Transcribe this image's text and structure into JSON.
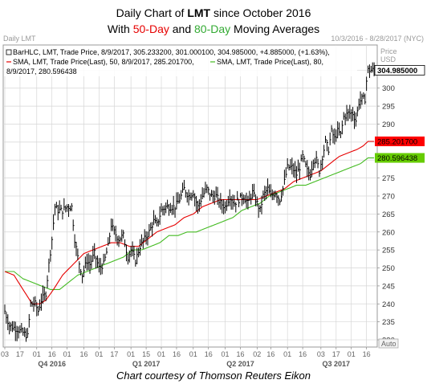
{
  "title": {
    "line1_prefix": "Daily Chart of ",
    "line1_symbol": "LMT",
    "line1_suffix": " since October 2016",
    "line2_prefix": "With ",
    "line2_50": "50-Day",
    "line2_mid": " and ",
    "line2_80": "80-Day",
    "line2_suffix": " Moving Averages"
  },
  "header": {
    "left": "Daily LMT",
    "right": "10/3/2016 - 8/28/2017 (NYC)"
  },
  "legend": {
    "line1": "BarHLC, LMT, Trade Price, 8/9/2017, 305.233200, 301.000100, 304.985000, +4.885000, (+1.63%),",
    "line2_sma50": "SMA, LMT, Trade Price(Last), 50, 8/9/2017, 285.201700,",
    "line2_sma80": "SMA, LMT, Trade Price(Last), 80,",
    "line3": "8/9/2017, 280.596438"
  },
  "axis": {
    "price_label": "Price",
    "usd_label": "USD",
    "auto_label": "Auto"
  },
  "tags": {
    "last": "304.985000",
    "sma50": "285.201700",
    "sma80": "280.596438"
  },
  "credit": "Chart courtesy of Thomson Reuters Eikon",
  "colors": {
    "price": "#000000",
    "sma50": "#e60000",
    "sma80": "#44bb22",
    "grid": "#d6d6d6",
    "plot_border": "#888888",
    "tag_last_bg": "#ffffff",
    "tag_sma50_bg": "#ff0000",
    "tag_sma80_bg": "#66cc00"
  },
  "chart_data": {
    "type": "line",
    "title": "Daily Chart of LMT since October 2016",
    "subtitle": "With 50-Day and 80-Day Moving Averages",
    "ylabel": "Price USD",
    "ylim": [
      228,
      312
    ],
    "y_ticks": [
      230,
      235,
      240,
      245,
      250,
      255,
      260,
      265,
      270,
      275,
      280,
      285,
      290,
      295,
      300,
      305
    ],
    "grid": true,
    "x_ticks": [
      {
        "label": "03",
        "i": 0
      },
      {
        "label": "17",
        "i": 10
      },
      {
        "label": "01",
        "i": 21
      },
      {
        "label": "16",
        "i": 31
      },
      {
        "label": "01",
        "i": 41
      },
      {
        "label": "16",
        "i": 52
      },
      {
        "label": "01",
        "i": 62
      },
      {
        "label": "17",
        "i": 72
      },
      {
        "label": "01",
        "i": 83
      },
      {
        "label": "15",
        "i": 93
      },
      {
        "label": "01",
        "i": 103
      },
      {
        "label": "16",
        "i": 113
      },
      {
        "label": "01",
        "i": 124
      },
      {
        "label": "16",
        "i": 134
      },
      {
        "label": "01",
        "i": 145
      },
      {
        "label": "16",
        "i": 155
      },
      {
        "label": "02",
        "i": 166
      },
      {
        "label": "16",
        "i": 175
      },
      {
        "label": "01",
        "i": 186
      },
      {
        "label": "16",
        "i": 196
      },
      {
        "label": "03",
        "i": 208
      },
      {
        "label": "17",
        "i": 218
      },
      {
        "label": "01",
        "i": 228
      },
      {
        "label": "16",
        "i": 238
      }
    ],
    "quarter_labels": [
      {
        "label": "Q4 2016",
        "i": 31
      },
      {
        "label": "Q1 2017",
        "i": 93
      },
      {
        "label": "Q2 2017",
        "i": 155
      },
      {
        "label": "Q3 2017",
        "i": 218
      }
    ],
    "n_days": 244,
    "price_anchors": [
      [
        0,
        238
      ],
      [
        3,
        234
      ],
      [
        8,
        233
      ],
      [
        12,
        232
      ],
      [
        15,
        231
      ],
      [
        17,
        240
      ],
      [
        20,
        240
      ],
      [
        22,
        238
      ],
      [
        24,
        241
      ],
      [
        27,
        243
      ],
      [
        29,
        251
      ],
      [
        31,
        258
      ],
      [
        33,
        267
      ],
      [
        35,
        266
      ],
      [
        38,
        266
      ],
      [
        41,
        267
      ],
      [
        44,
        267
      ],
      [
        46,
        258
      ],
      [
        48,
        253
      ],
      [
        51,
        248
      ],
      [
        54,
        252
      ],
      [
        56,
        251
      ],
      [
        59,
        254
      ],
      [
        62,
        250
      ],
      [
        65,
        251
      ],
      [
        68,
        256
      ],
      [
        70,
        262
      ],
      [
        72,
        260
      ],
      [
        75,
        258
      ],
      [
        78,
        259
      ],
      [
        81,
        253
      ],
      [
        83,
        255
      ],
      [
        86,
        252
      ],
      [
        89,
        256
      ],
      [
        92,
        258
      ],
      [
        95,
        260
      ],
      [
        98,
        263
      ],
      [
        100,
        262
      ],
      [
        103,
        266
      ],
      [
        106,
        267
      ],
      [
        109,
        267
      ],
      [
        112,
        267
      ],
      [
        115,
        269
      ],
      [
        118,
        272
      ],
      [
        121,
        270
      ],
      [
        124,
        271
      ],
      [
        127,
        267
      ],
      [
        130,
        270
      ],
      [
        133,
        272
      ],
      [
        136,
        270
      ],
      [
        139,
        270
      ],
      [
        142,
        268
      ],
      [
        145,
        267
      ],
      [
        148,
        270
      ],
      [
        151,
        268
      ],
      [
        154,
        269
      ],
      [
        157,
        270
      ],
      [
        160,
        268
      ],
      [
        163,
        271
      ],
      [
        166,
        268
      ],
      [
        168,
        266
      ],
      [
        170,
        270
      ],
      [
        173,
        272
      ],
      [
        175,
        270
      ],
      [
        178,
        271
      ],
      [
        181,
        269
      ],
      [
        183,
        272
      ],
      [
        186,
        278
      ],
      [
        189,
        278
      ],
      [
        192,
        276
      ],
      [
        194,
        278
      ],
      [
        196,
        281
      ],
      [
        199,
        277
      ],
      [
        201,
        276
      ],
      [
        203,
        280
      ],
      [
        205,
        280
      ],
      [
        207,
        277
      ],
      [
        209,
        281
      ],
      [
        211,
        285
      ],
      [
        213,
        283
      ],
      [
        215,
        288
      ],
      [
        217,
        286
      ],
      [
        219,
        288
      ],
      [
        221,
        287
      ],
      [
        223,
        292
      ],
      [
        226,
        293
      ],
      [
        229,
        293
      ],
      [
        231,
        291
      ],
      [
        233,
        296
      ],
      [
        235,
        297
      ],
      [
        237,
        297
      ],
      [
        238,
        302
      ],
      [
        239,
        305
      ]
    ],
    "sma50_anchors": [
      [
        0,
        249
      ],
      [
        6,
        248
      ],
      [
        12,
        244
      ],
      [
        18,
        240
      ],
      [
        20,
        240
      ],
      [
        23,
        240
      ],
      [
        27,
        241
      ],
      [
        32,
        244
      ],
      [
        38,
        248
      ],
      [
        45,
        251
      ],
      [
        52,
        254
      ],
      [
        58,
        255
      ],
      [
        64,
        256
      ],
      [
        70,
        257
      ],
      [
        76,
        257
      ],
      [
        82,
        256
      ],
      [
        88,
        256
      ],
      [
        94,
        258
      ],
      [
        100,
        260
      ],
      [
        106,
        261
      ],
      [
        112,
        262
      ],
      [
        118,
        264
      ],
      [
        124,
        265
      ],
      [
        130,
        267
      ],
      [
        136,
        268
      ],
      [
        142,
        269
      ],
      [
        148,
        269
      ],
      [
        154,
        269
      ],
      [
        160,
        269
      ],
      [
        166,
        269
      ],
      [
        172,
        270
      ],
      [
        178,
        271
      ],
      [
        184,
        272
      ],
      [
        190,
        274
      ],
      [
        196,
        275
      ],
      [
        202,
        276
      ],
      [
        208,
        277
      ],
      [
        214,
        279
      ],
      [
        220,
        281
      ],
      [
        226,
        282
      ],
      [
        232,
        283
      ],
      [
        236,
        284
      ],
      [
        239,
        285.2
      ]
    ],
    "sma80_anchors": [
      [
        0,
        249
      ],
      [
        6,
        249
      ],
      [
        12,
        247
      ],
      [
        18,
        246
      ],
      [
        24,
        245
      ],
      [
        30,
        244
      ],
      [
        36,
        244
      ],
      [
        42,
        246
      ],
      [
        48,
        248
      ],
      [
        54,
        249
      ],
      [
        60,
        250
      ],
      [
        66,
        251
      ],
      [
        72,
        252
      ],
      [
        78,
        253
      ],
      [
        84,
        255
      ],
      [
        90,
        255
      ],
      [
        96,
        256
      ],
      [
        102,
        257
      ],
      [
        108,
        259
      ],
      [
        114,
        259
      ],
      [
        120,
        260
      ],
      [
        126,
        260
      ],
      [
        132,
        261
      ],
      [
        138,
        262
      ],
      [
        144,
        263
      ],
      [
        150,
        264
      ],
      [
        156,
        266
      ],
      [
        162,
        267
      ],
      [
        168,
        268
      ],
      [
        174,
        270
      ],
      [
        180,
        271
      ],
      [
        186,
        272
      ],
      [
        192,
        273
      ],
      [
        198,
        273
      ],
      [
        204,
        274
      ],
      [
        210,
        275
      ],
      [
        216,
        276
      ],
      [
        222,
        277
      ],
      [
        228,
        278
      ],
      [
        234,
        279
      ],
      [
        239,
        280.6
      ]
    ],
    "series": [
      {
        "name": "BarHLC, LMT, Trade Price",
        "kind": "ohlc_bars"
      },
      {
        "name": "SMA, LMT, Trade Price(Last), 50",
        "kind": "line"
      },
      {
        "name": "SMA, LMT, Trade Price(Last), 80",
        "kind": "line"
      }
    ],
    "last_value": 304.985,
    "last_sma50": 285.2017,
    "last_sma80": 280.596438
  }
}
